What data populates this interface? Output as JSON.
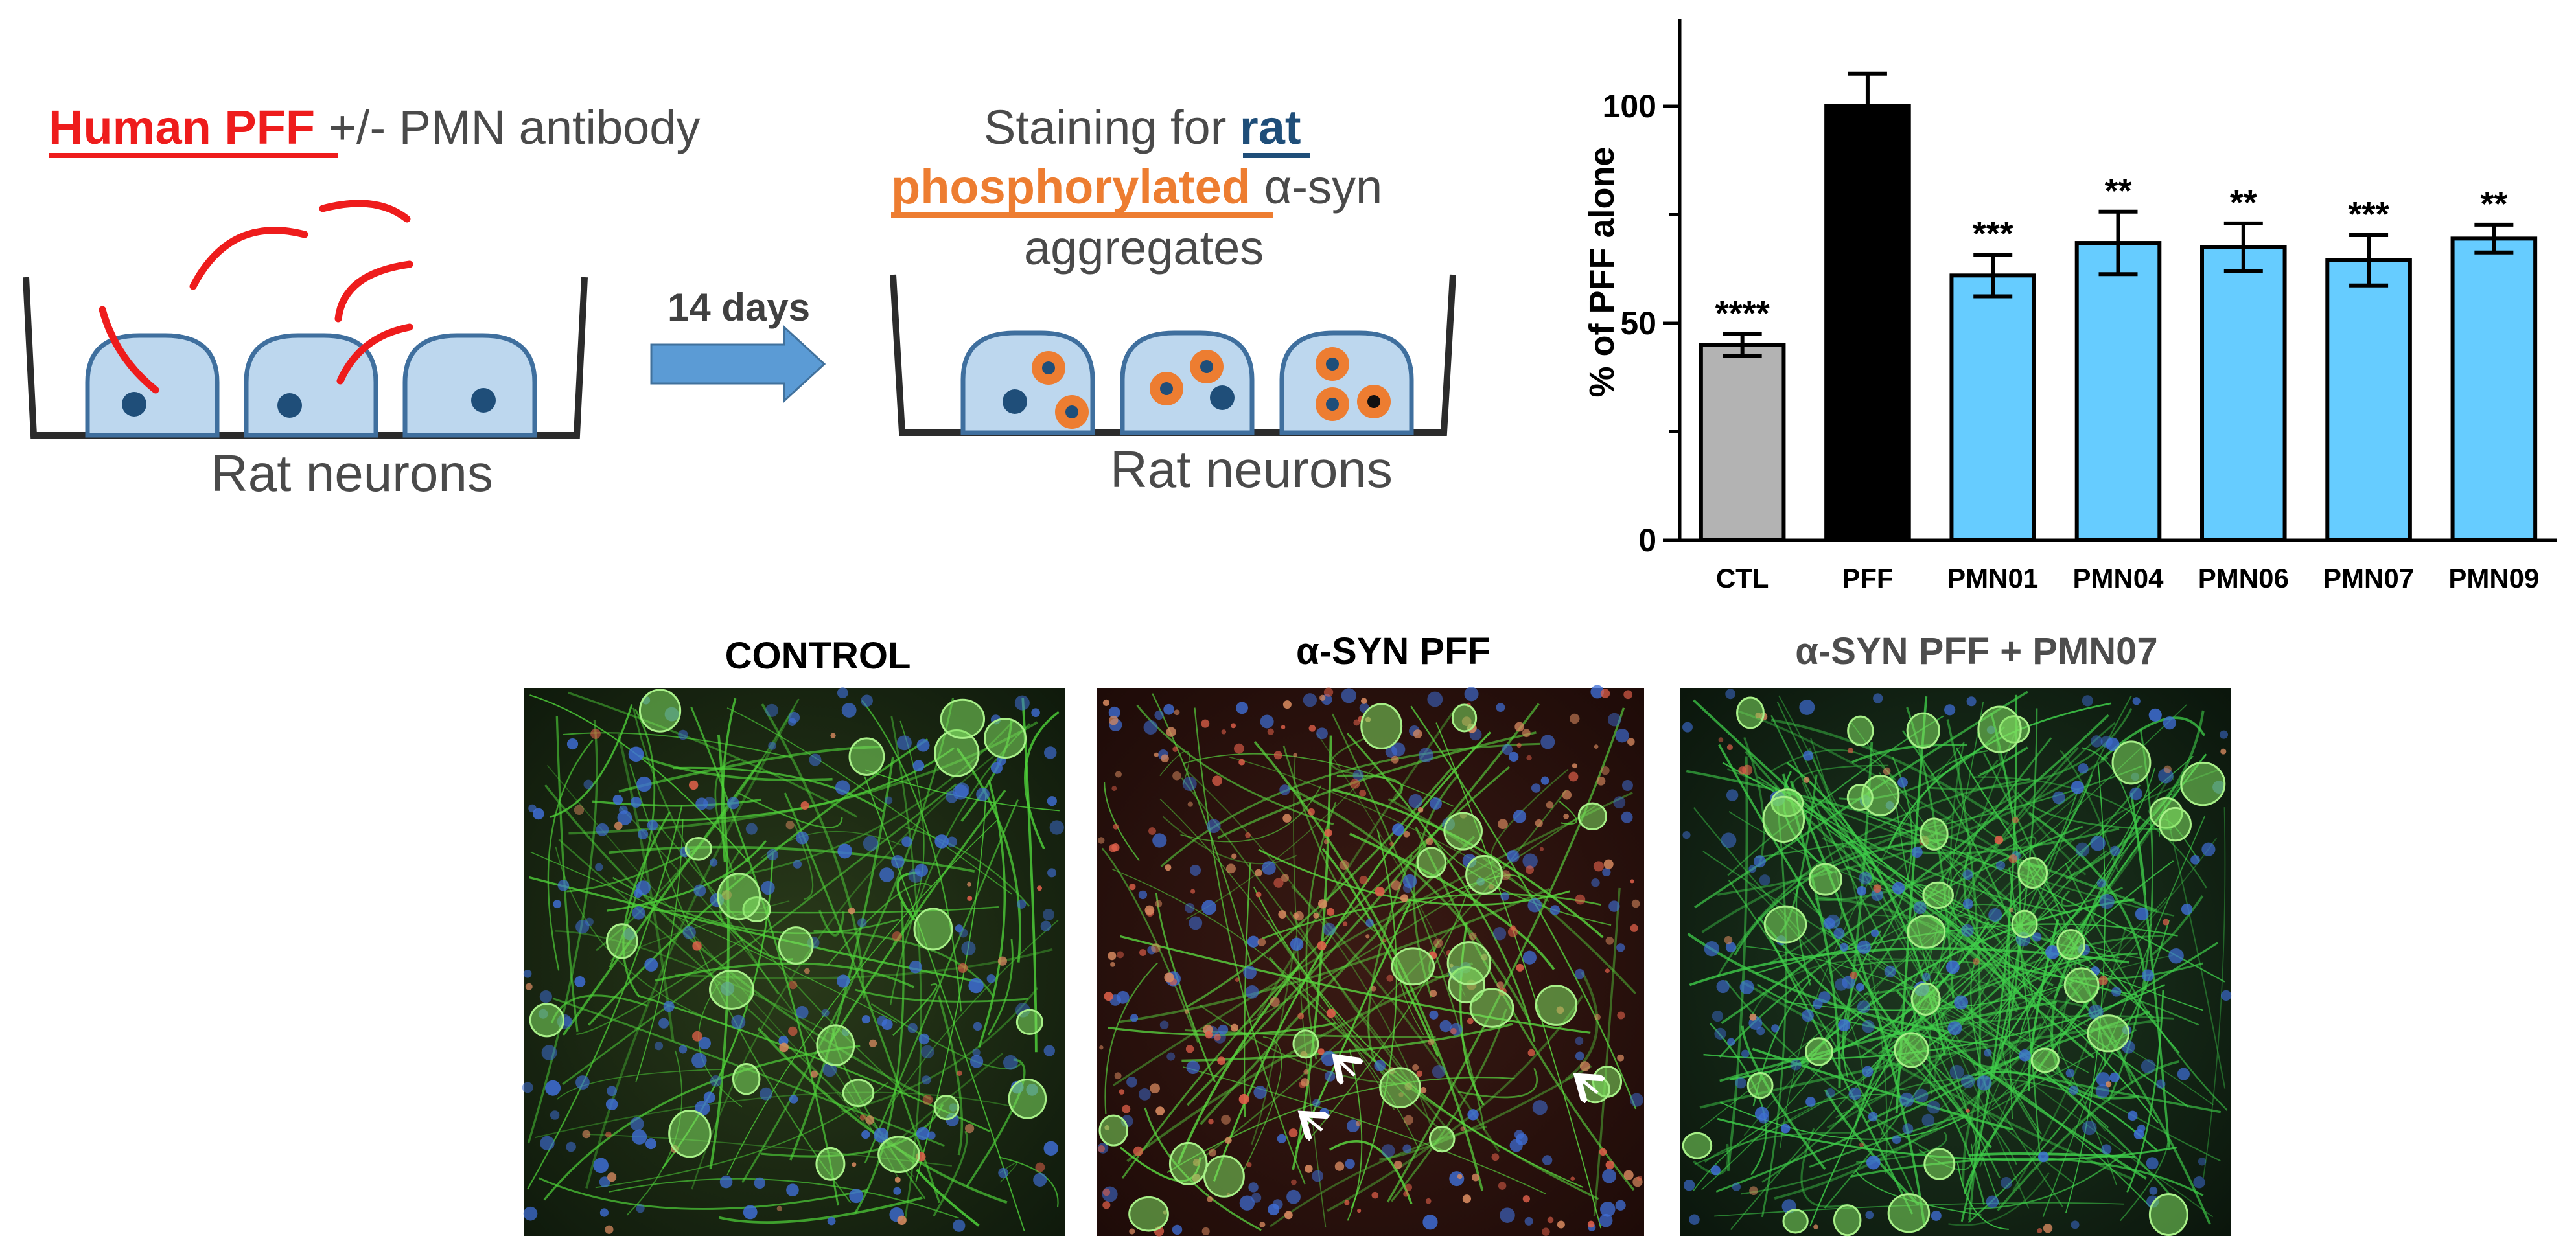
{
  "schematic": {
    "left": {
      "title_highlight": "Human PFF ",
      "title_rest": "+/- PMN antibody",
      "caption": "Rat neurons"
    },
    "arrow_label": "14 days",
    "right": {
      "line1_prefix": "Staining for ",
      "line1_highlight": "rat",
      "line2_highlight": "phosphorylated ",
      "line2_rest": "α-syn",
      "line3": "aggregates",
      "caption": "Rat neurons"
    },
    "colors": {
      "pff_fiber": "#ee1c1c",
      "cell_fill": "#bdd7ee",
      "cell_stroke": "#3f6f9e",
      "nucleus": "#1f4e79",
      "aggregate": "#ed7d31",
      "arrow": "#5b9bd5",
      "well": "#2b2b2b"
    }
  },
  "chart_data": {
    "type": "bar",
    "categories": [
      "CTL",
      "PFF",
      "PMN01",
      "PMN04",
      "PMN06",
      "PMN07",
      "PMN09"
    ],
    "values": [
      45,
      100,
      61,
      68.5,
      67.5,
      64.5,
      69.5
    ],
    "errors": [
      2.5,
      7.5,
      4.8,
      7.2,
      5.5,
      5.8,
      3.2
    ],
    "significance": [
      "****",
      "",
      "***",
      "**",
      "**",
      "***",
      "**"
    ],
    "bar_colors": [
      "#b3b3b3",
      "#000000",
      "#66ccff",
      "#66ccff",
      "#66ccff",
      "#66ccff",
      "#66ccff"
    ],
    "ylabel": "% of PFF alone",
    "xlabel": "",
    "title": "",
    "ylim": [
      0,
      120
    ],
    "yticks": [
      0,
      50,
      100
    ],
    "grid": false
  },
  "micrographs": [
    {
      "label": "CONTROL",
      "label_color": "#000000"
    },
    {
      "label": "α-SYN PFF",
      "label_color": "#000000"
    },
    {
      "label": "α-SYN PFF + PMN07",
      "label_color": "#4d4d4d"
    }
  ]
}
